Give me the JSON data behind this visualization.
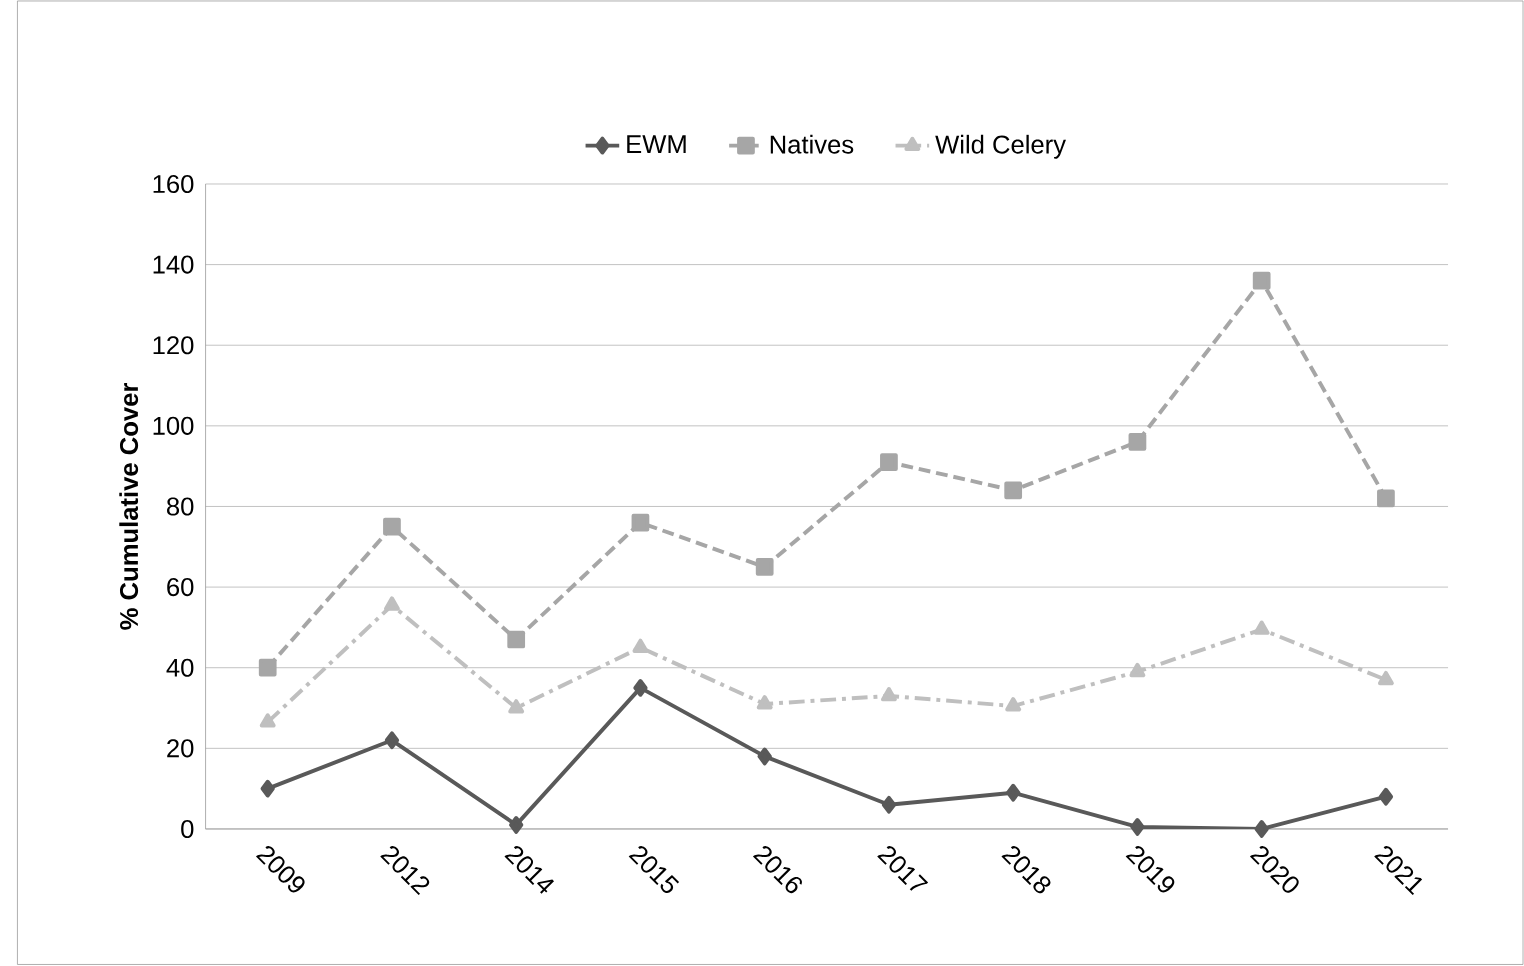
{
  "chart_data": {
    "type": "line",
    "categories": [
      "2009",
      "2012",
      "2014",
      "2015",
      "2016",
      "2017",
      "2018",
      "2019",
      "2020",
      "2021"
    ],
    "ylabel": "% Cumulative Cover",
    "series": [
      {
        "name": "EWM",
        "color": "#595959",
        "marker": "diamond",
        "line_style": "solid",
        "values": [
          10,
          22,
          1,
          35,
          18,
          6,
          9,
          0.5,
          0,
          8
        ]
      },
      {
        "name": "Natives",
        "color": "#a6a6a6",
        "marker": "square",
        "line_style": "dashed",
        "values": [
          40,
          75,
          47,
          76,
          65,
          91,
          84,
          96,
          136,
          82
        ]
      },
      {
        "name": "Wild Celery",
        "color": "#bfbfbf",
        "marker": "triangle",
        "line_style": "dashdot",
        "values": [
          26.5,
          55.5,
          30,
          45,
          31,
          33,
          30.5,
          39,
          49.5,
          37
        ]
      }
    ],
    "ylim": [
      0,
      160
    ],
    "yticks": [
      0,
      20,
      40,
      60,
      80,
      100,
      120,
      140,
      160
    ],
    "grid": "y",
    "legend": "top"
  }
}
